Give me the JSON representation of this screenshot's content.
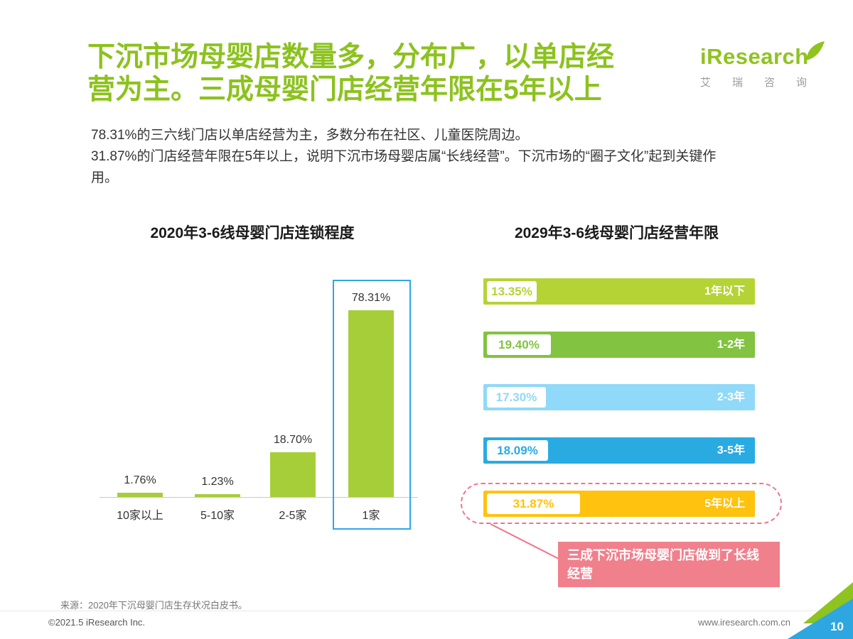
{
  "header": {
    "title": "下沉市场母婴店数量多，分布广，以单店经营为主。三成母婴门店经营年限在5年以上",
    "logo_text": "iResearch",
    "logo_sub": "艾瑞咨询",
    "brand_green": "#8fc31f"
  },
  "intro": {
    "line1": "78.31%的三六线门店以单店经营为主，多数分布在社区、儿童医院周边。",
    "line2": "31.87%的门店经营年限在5年以上，说明下沉市场母婴店属“长线经营”。下沉市场的“圈子文化”起到关键作用。"
  },
  "chart_data": [
    {
      "type": "bar",
      "orientation": "vertical",
      "title": "2020年3-6线母婴门店连锁程度",
      "categories": [
        "10家以上",
        "5-10家",
        "2-5家",
        "1家"
      ],
      "values": [
        1.76,
        1.23,
        18.7,
        78.31
      ],
      "value_labels": [
        "1.76%",
        "1.23%",
        "18.70%",
        "78.31%"
      ],
      "bar_color": "#a6ce39",
      "ylim": [
        0,
        80
      ],
      "grid": false,
      "highlight_category": "1家",
      "highlight_box_color": "#2ea7e2"
    },
    {
      "type": "bar",
      "orientation": "horizontal",
      "title": "2029年3-6线母婴门店经营年限",
      "categories": [
        "1年以下",
        "1-2年",
        "2-3年",
        "3-5年",
        "5年以上"
      ],
      "values": [
        13.35,
        19.4,
        17.3,
        18.09,
        31.87
      ],
      "value_labels": [
        "13.35%",
        "19.40%",
        "17.30%",
        "18.09%",
        "31.87%"
      ],
      "bar_colors": [
        "#b5d334",
        "#82c341",
        "#90d9f8",
        "#29abe2",
        "#ffc20e"
      ],
      "highlight_category": "5年以上",
      "highlight_border_color": "#f2728a",
      "annotation": "三成下沉市场母婴门店做到了长线经营",
      "annotation_bg": "#f0808c"
    }
  ],
  "footer": {
    "source": "来源：2020年下沉母婴门店生存状况白皮书。",
    "copyright": "©2021.5 iResearch Inc.",
    "website": "www.iresearch.com.cn",
    "page_number": "10"
  }
}
